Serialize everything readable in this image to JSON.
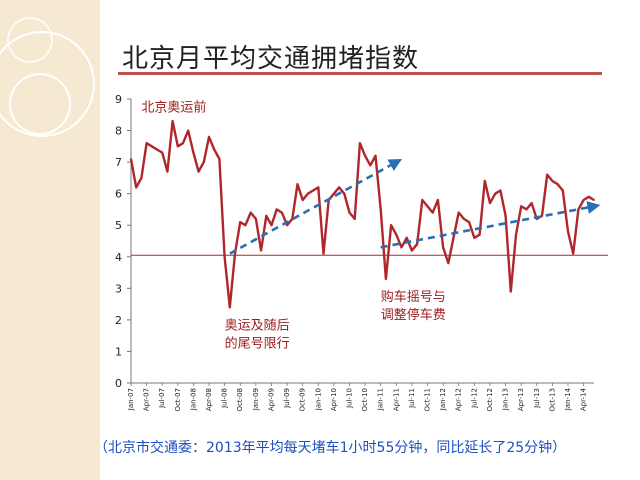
{
  "slide": {
    "title": "北京月平均交通拥堵指数",
    "caption": "（北京市交通委：2013年平均每天堵车1小时55分钟，同比延长了25分钟）"
  },
  "colors": {
    "series": "#b0272b",
    "trend": "#2a6eb5",
    "reference": "#b0272b",
    "annotation": "#9b1b1b",
    "caption": "#1f4fbf",
    "background": "#f5e9d2"
  },
  "chart_data": {
    "type": "line",
    "title": "北京月平均交通拥堵指数",
    "xlabel": "",
    "ylabel": "",
    "ylim": [
      0,
      9
    ],
    "yticks": [
      "0",
      "1",
      "2",
      "3",
      "4",
      "5",
      "6",
      "7",
      "8",
      "9"
    ],
    "grid": false,
    "reference_line": 4.05,
    "x_tick_labels": [
      "Jan-07",
      "Apr-07",
      "Jul-07",
      "Oct-07",
      "Jan-08",
      "Apr-08",
      "Jul-08",
      "Oct-08",
      "Jan-09",
      "Apr-09",
      "Jul-09",
      "Oct-09",
      "Jan-10",
      "Apr-10",
      "Jul-10",
      "Oct-10",
      "Jan-11",
      "Apr-11",
      "Jul-11",
      "Oct-11",
      "Jan-12",
      "Apr-12",
      "Jul-12",
      "Oct-12",
      "Jan-13",
      "Apr-13",
      "Jul-13",
      "Oct-13",
      "Jan-14",
      "Apr-14"
    ],
    "months": [
      "Jan-07",
      "Feb-07",
      "Mar-07",
      "Apr-07",
      "May-07",
      "Jun-07",
      "Jul-07",
      "Aug-07",
      "Sep-07",
      "Oct-07",
      "Nov-07",
      "Dec-07",
      "Jan-08",
      "Feb-08",
      "Mar-08",
      "Apr-08",
      "May-08",
      "Jun-08",
      "Jul-08",
      "Aug-08",
      "Sep-08",
      "Oct-08",
      "Nov-08",
      "Dec-08",
      "Jan-09",
      "Feb-09",
      "Mar-09",
      "Apr-09",
      "May-09",
      "Jun-09",
      "Jul-09",
      "Aug-09",
      "Sep-09",
      "Oct-09",
      "Nov-09",
      "Dec-09",
      "Jan-10",
      "Feb-10",
      "Mar-10",
      "Apr-10",
      "May-10",
      "Jun-10",
      "Jul-10",
      "Aug-10",
      "Sep-10",
      "Oct-10",
      "Nov-10",
      "Dec-10",
      "Jan-11",
      "Feb-11",
      "Mar-11",
      "Apr-11",
      "May-11",
      "Jun-11",
      "Jul-11",
      "Aug-11",
      "Sep-11",
      "Oct-11",
      "Nov-11",
      "Dec-11",
      "Jan-12",
      "Feb-12",
      "Mar-12",
      "Apr-12",
      "May-12",
      "Jun-12",
      "Jul-12",
      "Aug-12",
      "Sep-12",
      "Oct-12",
      "Nov-12",
      "Dec-12",
      "Jan-13",
      "Feb-13",
      "Mar-13",
      "Apr-13",
      "May-13",
      "Jun-13",
      "Jul-13",
      "Aug-13",
      "Sep-13",
      "Oct-13",
      "Nov-13",
      "Dec-13",
      "Jan-14",
      "Feb-14",
      "Mar-14",
      "Apr-14",
      "May-14",
      "Jun-14"
    ],
    "values": [
      7.1,
      6.2,
      6.5,
      7.6,
      7.5,
      7.4,
      7.3,
      6.7,
      8.3,
      7.5,
      7.6,
      8.0,
      7.3,
      6.7,
      7.0,
      7.8,
      7.4,
      7.1,
      4.0,
      2.4,
      4.1,
      5.1,
      5.0,
      5.4,
      5.2,
      4.2,
      5.3,
      5.0,
      5.5,
      5.4,
      5.0,
      5.2,
      6.3,
      5.8,
      6.0,
      6.1,
      6.2,
      4.1,
      5.8,
      6.0,
      6.2,
      6.0,
      5.4,
      5.2,
      7.6,
      7.2,
      6.9,
      7.2,
      5.5,
      3.3,
      5.0,
      4.7,
      4.3,
      4.6,
      4.2,
      4.4,
      5.8,
      5.6,
      5.4,
      5.8,
      4.3,
      3.8,
      4.6,
      5.4,
      5.2,
      5.1,
      4.6,
      4.7,
      6.4,
      5.7,
      6.0,
      6.1,
      5.3,
      2.9,
      4.7,
      5.6,
      5.5,
      5.7,
      5.2,
      5.3,
      6.6,
      6.4,
      6.3,
      6.1,
      4.8,
      4.1,
      5.5,
      5.8,
      5.9,
      5.8
    ],
    "trends": [
      {
        "from_x": "Aug-08",
        "from_y": 4.1,
        "to_x": "Apr-11",
        "to_y": 7.0
      },
      {
        "from_x": "Jan-11",
        "from_y": 4.3,
        "to_x": "Jun-14",
        "to_y": 5.6
      }
    ],
    "annotations": [
      {
        "lines": [
          "北京奥运前"
        ],
        "at_x": "Mar-07",
        "at_y": 8.6
      },
      {
        "lines": [
          "奥运及随后",
          "的尾号限行"
        ],
        "at_x": "Jul-08",
        "at_y": 1.7
      },
      {
        "lines": [
          "购车摇号与",
          "调整停车费"
        ],
        "at_x": "Jan-11",
        "at_y": 2.6
      }
    ]
  }
}
